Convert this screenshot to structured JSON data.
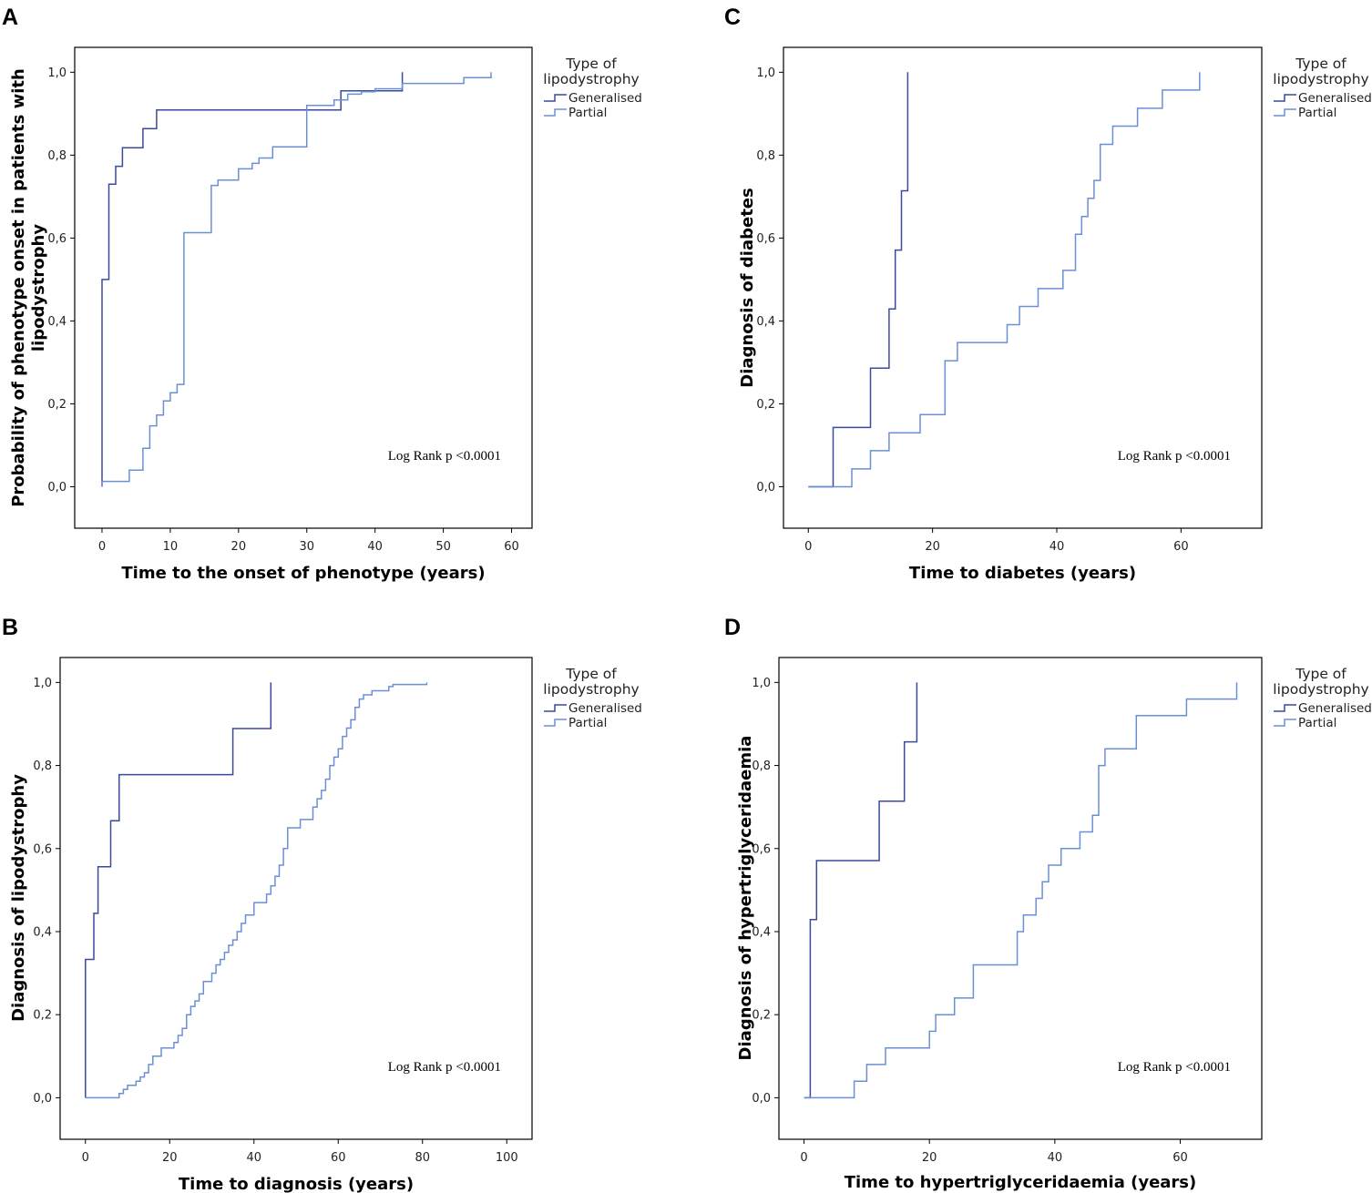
{
  "colors": {
    "generalised": "#3a4a9c",
    "partial": "#6b8fd6",
    "axis": "#000000"
  },
  "chart_data": [
    {
      "panel": "A",
      "type": "line",
      "title": "",
      "xlabel": "Time to the onset of phenotype (years)",
      "ylabel": "Probability of phenotype onset in patients with lipodystrophy",
      "ylabel_lines": [
        "Probability of phenotype onset in patients with",
        "lipodystrophy"
      ],
      "xlim": [
        -4,
        63
      ],
      "ylim": [
        -0.1,
        1.06
      ],
      "xticks": [
        0,
        10,
        20,
        30,
        40,
        50,
        60
      ],
      "xtick_labels": [
        "0",
        "10",
        "20",
        "30",
        "40",
        "50",
        "60"
      ],
      "yticks": [
        0,
        0.2,
        0.4,
        0.6,
        0.8,
        1.0
      ],
      "ytick_labels": [
        "0,0",
        "0,2",
        "0,4",
        "0,6",
        "0,8",
        "1,0"
      ],
      "legend": {
        "title_lines": [
          "Type of",
          "lipodystrophy"
        ],
        "entries": [
          "Generalised",
          "Partial"
        ],
        "position": "outside right"
      },
      "annotation": "Log Rank p <0.0001",
      "series": [
        {
          "name": "Generalised",
          "step": true,
          "x": [
            0,
            0,
            1,
            1,
            2,
            2,
            3,
            3,
            6,
            6,
            8,
            8,
            35,
            35,
            44,
            44
          ],
          "y": [
            0,
            0.5,
            0.5,
            0.73,
            0.73,
            0.773,
            0.773,
            0.818,
            0.818,
            0.864,
            0.864,
            0.909,
            0.909,
            0.955,
            0.955,
            1.0
          ]
        },
        {
          "name": "Partial",
          "step": true,
          "x": [
            0,
            0,
            4,
            4,
            6,
            6,
            7,
            7,
            8,
            8,
            9,
            9,
            10,
            10,
            11,
            11,
            12,
            12,
            16,
            16,
            17,
            17,
            20,
            20,
            22,
            22,
            23,
            23,
            25,
            25,
            30,
            30,
            34,
            34,
            36,
            36,
            38,
            38,
            40,
            40,
            44,
            44,
            53,
            53,
            57,
            57
          ],
          "y": [
            0,
            0.013,
            0.013,
            0.04,
            0.04,
            0.093,
            0.093,
            0.147,
            0.147,
            0.173,
            0.173,
            0.207,
            0.207,
            0.227,
            0.227,
            0.247,
            0.247,
            0.613,
            0.613,
            0.727,
            0.727,
            0.74,
            0.74,
            0.767,
            0.767,
            0.78,
            0.78,
            0.793,
            0.793,
            0.82,
            0.82,
            0.92,
            0.92,
            0.933,
            0.933,
            0.947,
            0.947,
            0.953,
            0.953,
            0.96,
            0.96,
            0.973,
            0.973,
            0.987,
            0.987,
            1.0
          ]
        }
      ]
    },
    {
      "panel": "B",
      "type": "line",
      "title": "",
      "xlabel": "Time to diagnosis (years)",
      "ylabel": "Diagnosis of lipodystrophy",
      "ylabel_lines": [
        "Diagnosis of lipodystrophy"
      ],
      "xlim": [
        -6,
        106
      ],
      "ylim": [
        -0.1,
        1.06
      ],
      "xticks": [
        0,
        20,
        40,
        60,
        80,
        100
      ],
      "xtick_labels": [
        "0",
        "20",
        "40",
        "60",
        "80",
        "100"
      ],
      "yticks": [
        0,
        0.2,
        0.4,
        0.6,
        0.8,
        1.0
      ],
      "ytick_labels": [
        "0,0",
        "0,2",
        "0,4",
        "0,6",
        "0,8",
        "1,0"
      ],
      "legend": {
        "title_lines": [
          "Type of",
          "lipodystrophy"
        ],
        "entries": [
          "Generalised",
          "Partial"
        ],
        "position": "outside right"
      },
      "annotation": "Log Rank p <0.0001",
      "series": [
        {
          "name": "Generalised",
          "step": true,
          "x": [
            0,
            0,
            2,
            2,
            3,
            3,
            6,
            6,
            8,
            8,
            35,
            35,
            44,
            44
          ],
          "y": [
            0,
            0.333,
            0.333,
            0.444,
            0.444,
            0.556,
            0.556,
            0.667,
            0.667,
            0.778,
            0.778,
            0.889,
            0.889,
            1.0
          ]
        },
        {
          "name": "Partial",
          "step": true,
          "x": [
            0,
            0,
            8,
            8,
            9,
            9,
            10,
            10,
            12,
            12,
            13,
            13,
            14,
            14,
            15,
            15,
            16,
            16,
            18,
            18,
            21,
            21,
            22,
            22,
            23,
            23,
            24,
            24,
            25,
            25,
            26,
            26,
            27,
            27,
            28,
            28,
            30,
            30,
            31,
            31,
            32,
            32,
            33,
            33,
            34,
            34,
            35,
            35,
            36,
            36,
            37,
            37,
            38,
            38,
            40,
            40,
            43,
            43,
            44,
            44,
            45,
            45,
            46,
            46,
            47,
            47,
            48,
            48,
            51,
            51,
            54,
            54,
            55,
            55,
            56,
            56,
            57,
            57,
            58,
            58,
            59,
            59,
            60,
            60,
            61,
            61,
            62,
            62,
            63,
            63,
            64,
            64,
            65,
            65,
            66,
            66,
            68,
            68,
            72,
            72,
            73,
            73,
            81,
            81
          ],
          "y": [
            0,
            0,
            0,
            0.01,
            0.01,
            0.02,
            0.02,
            0.03,
            0.03,
            0.04,
            0.04,
            0.05,
            0.05,
            0.06,
            0.06,
            0.08,
            0.08,
            0.1,
            0.1,
            0.12,
            0.12,
            0.133,
            0.133,
            0.15,
            0.15,
            0.167,
            0.167,
            0.2,
            0.2,
            0.22,
            0.22,
            0.233,
            0.233,
            0.25,
            0.25,
            0.28,
            0.28,
            0.3,
            0.3,
            0.32,
            0.32,
            0.333,
            0.333,
            0.35,
            0.35,
            0.367,
            0.367,
            0.38,
            0.38,
            0.4,
            0.4,
            0.42,
            0.42,
            0.44,
            0.44,
            0.47,
            0.47,
            0.49,
            0.49,
            0.51,
            0.51,
            0.533,
            0.533,
            0.56,
            0.56,
            0.6,
            0.6,
            0.65,
            0.65,
            0.67,
            0.67,
            0.7,
            0.7,
            0.72,
            0.72,
            0.74,
            0.74,
            0.767,
            0.767,
            0.8,
            0.8,
            0.82,
            0.82,
            0.84,
            0.84,
            0.87,
            0.87,
            0.89,
            0.89,
            0.91,
            0.91,
            0.94,
            0.94,
            0.96,
            0.96,
            0.97,
            0.97,
            0.98,
            0.98,
            0.99,
            0.99,
            0.995,
            0.995,
            1.0
          ]
        }
      ]
    },
    {
      "panel": "C",
      "type": "line",
      "title": "",
      "xlabel": "Time to diabetes (years)",
      "ylabel": "Diagnosis of diabetes",
      "ylabel_lines": [
        "Diagnosis of diabetes"
      ],
      "xlim": [
        -4,
        73
      ],
      "ylim": [
        -0.1,
        1.06
      ],
      "xticks": [
        0,
        20,
        40,
        60
      ],
      "xtick_labels": [
        "0",
        "20",
        "40",
        "60"
      ],
      "yticks": [
        0,
        0.2,
        0.4,
        0.6,
        0.8,
        1.0
      ],
      "ytick_labels": [
        "0,0",
        "0,2",
        "0,4",
        "0,6",
        "0,8",
        "1,0"
      ],
      "legend": {
        "title_lines": [
          "Type of",
          "lipodystrophy"
        ],
        "entries": [
          "Generalised",
          "Partial"
        ],
        "position": "outside right"
      },
      "annotation": "Log Rank p <0.0001",
      "series": [
        {
          "name": "Generalised",
          "step": true,
          "x": [
            0,
            4,
            4,
            10,
            10,
            13,
            13,
            14,
            14,
            15,
            15,
            16,
            16
          ],
          "y": [
            0,
            0,
            0.143,
            0.143,
            0.286,
            0.286,
            0.429,
            0.429,
            0.571,
            0.571,
            0.714,
            0.714,
            1.0
          ]
        },
        {
          "name": "Partial",
          "step": true,
          "x": [
            0,
            7,
            7,
            10,
            10,
            13,
            13,
            18,
            18,
            22,
            22,
            24,
            24,
            32,
            32,
            34,
            34,
            37,
            37,
            41,
            41,
            43,
            43,
            44,
            44,
            45,
            45,
            46,
            46,
            47,
            47,
            49,
            49,
            53,
            53,
            57,
            57,
            63,
            63
          ],
          "y": [
            0,
            0,
            0.043,
            0.043,
            0.087,
            0.087,
            0.13,
            0.13,
            0.174,
            0.174,
            0.304,
            0.304,
            0.348,
            0.348,
            0.391,
            0.391,
            0.435,
            0.435,
            0.478,
            0.478,
            0.522,
            0.522,
            0.609,
            0.609,
            0.652,
            0.652,
            0.696,
            0.696,
            0.739,
            0.739,
            0.826,
            0.826,
            0.87,
            0.87,
            0.913,
            0.913,
            0.957,
            0.957,
            1.0
          ]
        }
      ]
    },
    {
      "panel": "D",
      "type": "line",
      "title": "",
      "xlabel": "Time to hypertriglyceridaemia (years)",
      "ylabel": "Diagnosis of hypertriglyceridaemia",
      "ylabel_lines": [
        "Diagnosis of hypertriglyceridaemia"
      ],
      "xlim": [
        -4,
        73
      ],
      "ylim": [
        -0.1,
        1.06
      ],
      "xticks": [
        0,
        20,
        40,
        60
      ],
      "xtick_labels": [
        "0",
        "20",
        "40",
        "60"
      ],
      "yticks": [
        0,
        0.2,
        0.4,
        0.6,
        0.8,
        1.0
      ],
      "ytick_labels": [
        "0,0",
        "0,2",
        "0,4",
        "0,6",
        "0,8",
        "1,0"
      ],
      "legend": {
        "title_lines": [
          "Type of",
          "lipodystrophy"
        ],
        "entries": [
          "Generalised",
          "Partial"
        ],
        "position": "outside right"
      },
      "annotation": "Log Rank p <0.0001",
      "series": [
        {
          "name": "Generalised",
          "step": true,
          "x": [
            0,
            1,
            1,
            2,
            2,
            12,
            12,
            16,
            16,
            18,
            18
          ],
          "y": [
            0,
            0,
            0.429,
            0.429,
            0.571,
            0.571,
            0.714,
            0.714,
            0.857,
            0.857,
            1.0
          ]
        },
        {
          "name": "Partial",
          "step": true,
          "x": [
            0,
            8,
            8,
            10,
            10,
            13,
            13,
            20,
            20,
            21,
            21,
            24,
            24,
            27,
            27,
            34,
            34,
            35,
            35,
            37,
            37,
            38,
            38,
            39,
            39,
            41,
            41,
            44,
            44,
            46,
            46,
            47,
            47,
            48,
            48,
            53,
            53,
            61,
            61,
            69,
            69
          ],
          "y": [
            0,
            0,
            0.04,
            0.04,
            0.08,
            0.08,
            0.12,
            0.12,
            0.16,
            0.16,
            0.2,
            0.2,
            0.24,
            0.24,
            0.32,
            0.32,
            0.4,
            0.4,
            0.44,
            0.44,
            0.48,
            0.48,
            0.52,
            0.52,
            0.56,
            0.56,
            0.6,
            0.6,
            0.64,
            0.64,
            0.68,
            0.68,
            0.8,
            0.8,
            0.84,
            0.84,
            0.92,
            0.92,
            0.96,
            0.96,
            1.0
          ]
        }
      ]
    }
  ]
}
